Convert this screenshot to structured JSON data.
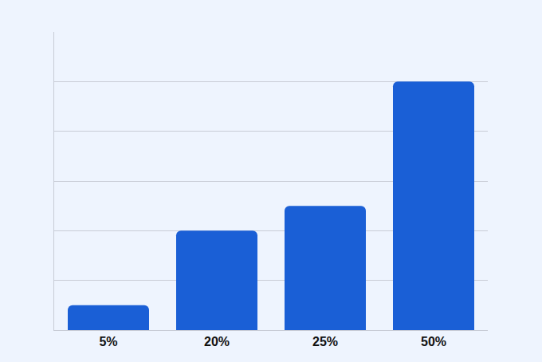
{
  "chart_data": {
    "type": "bar",
    "categories": [
      "5%",
      "20%",
      "25%",
      "50%"
    ],
    "values": [
      5,
      20,
      25,
      50
    ],
    "color": "#1a5fd6",
    "ylim": [
      0,
      60
    ],
    "yticks": [
      0,
      10,
      20,
      30,
      40,
      50
    ],
    "grid": true,
    "tick_labels": "x"
  }
}
